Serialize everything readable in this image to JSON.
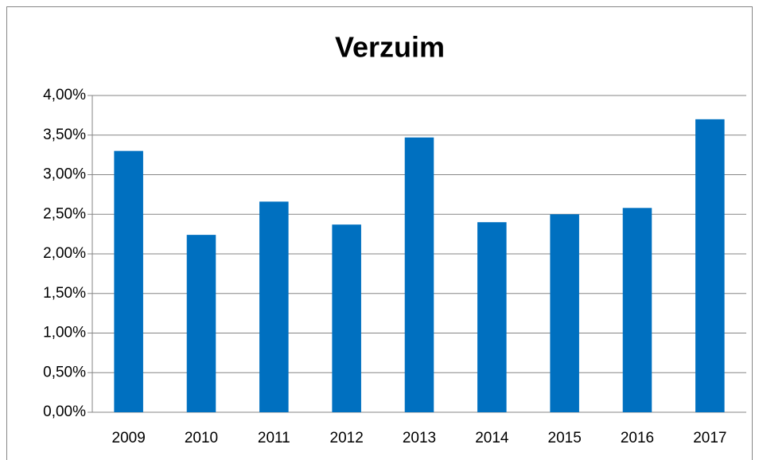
{
  "chart_data": {
    "type": "bar",
    "title": "Verzuim",
    "categories": [
      "2009",
      "2010",
      "2011",
      "2012",
      "2013",
      "2014",
      "2015",
      "2016",
      "2017"
    ],
    "values": [
      3.3,
      2.24,
      2.66,
      2.37,
      3.47,
      2.4,
      2.5,
      2.58,
      3.7
    ],
    "color": "#0070c0",
    "ylim": [
      0,
      4
    ],
    "yticks": [
      {
        "value": 0,
        "label": "0,00%"
      },
      {
        "value": 0.5,
        "label": "0,50%"
      },
      {
        "value": 1,
        "label": "1,00%"
      },
      {
        "value": 1.5,
        "label": "1,50%"
      },
      {
        "value": 2,
        "label": "2,00%"
      },
      {
        "value": 2.5,
        "label": "2,50%"
      },
      {
        "value": 3,
        "label": "3,00%"
      },
      {
        "value": 3.5,
        "label": "3,50%"
      },
      {
        "value": 4,
        "label": "4,00%"
      }
    ],
    "grid": true
  }
}
